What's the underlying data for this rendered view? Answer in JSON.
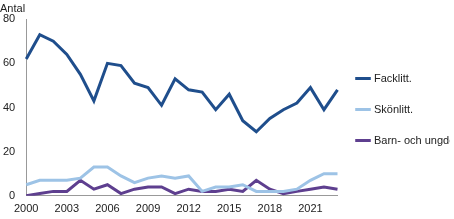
{
  "chart_data": {
    "type": "line",
    "ylabel": "Antal",
    "categories": [
      "2000",
      null,
      null,
      "2003",
      null,
      null,
      "2006",
      null,
      null,
      "2009",
      null,
      null,
      "2012",
      null,
      null,
      "2015",
      null,
      null,
      "2018",
      null,
      null,
      "2021",
      null,
      null
    ],
    "series": [
      {
        "name": "Facklitt.",
        "color": "#1f4e8c",
        "values": [
          62,
          73,
          70,
          64,
          55,
          43,
          60,
          59,
          51,
          49,
          41,
          53,
          48,
          47,
          39,
          46,
          34,
          29,
          35,
          39,
          42,
          49,
          39,
          48
        ]
      },
      {
        "name": "Skönlitt.",
        "color": "#9dc3e6",
        "values": [
          5,
          7,
          7,
          7,
          8,
          13,
          13,
          9,
          6,
          8,
          9,
          8,
          9,
          2,
          4,
          4,
          5,
          2,
          2,
          2,
          3,
          7,
          10,
          10
        ]
      },
      {
        "name": "Barn- och ungdomslitt.",
        "color": "#5e3f8f",
        "values": [
          0,
          1,
          2,
          2,
          7,
          3,
          5,
          1,
          3,
          4,
          4,
          1,
          3,
          2,
          2,
          3,
          2,
          7,
          3,
          1,
          2,
          3,
          4,
          3
        ]
      }
    ],
    "ylim": [
      0,
      80
    ],
    "yticks": [
      0,
      20,
      40,
      60,
      80
    ],
    "grid": false,
    "legend": "right"
  }
}
